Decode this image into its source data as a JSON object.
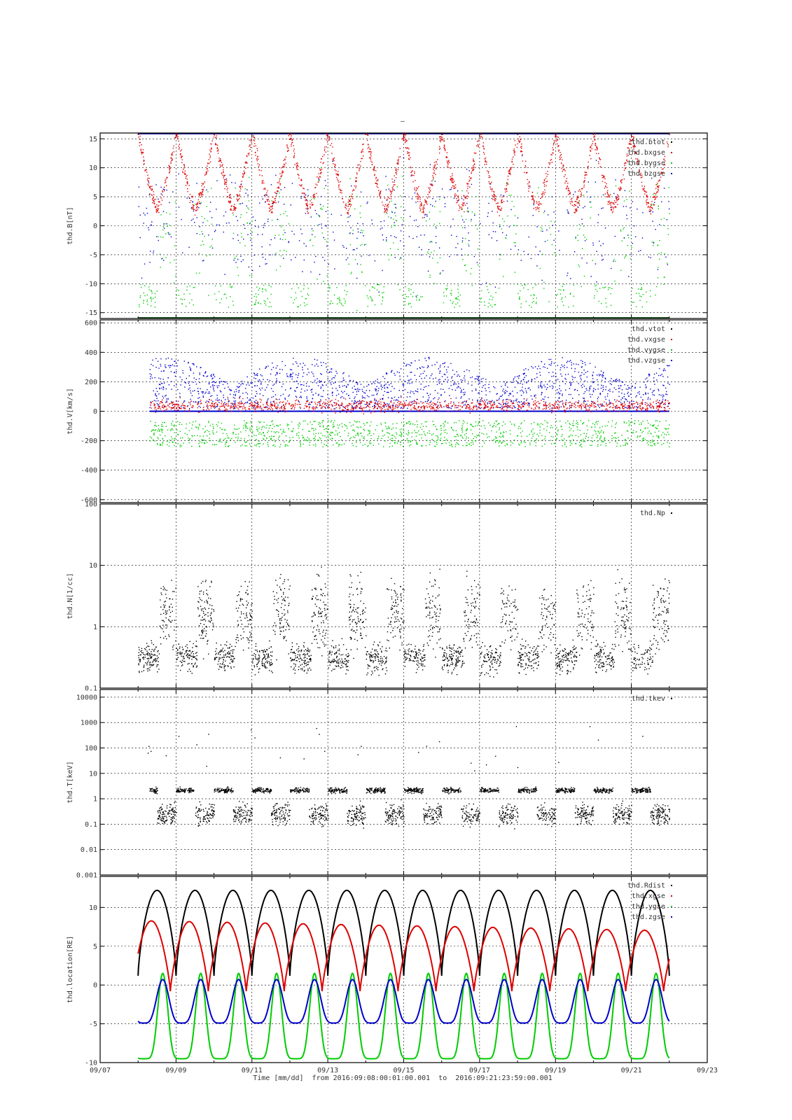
{
  "page": {
    "title_mark": "–"
  },
  "colors": {
    "black": "#000000",
    "red": "#dd0000",
    "green": "#00cc00",
    "blue": "#0000cc"
  },
  "x_axis": {
    "range_days": [
      "09/07",
      "09/23"
    ],
    "tick_labels": [
      "09/07",
      "09/09",
      "09/11",
      "09/13",
      "09/15",
      "09/17",
      "09/19",
      "09/21",
      "09/23"
    ],
    "caption": "Time [mm/dd]  from 2016:09:08:00:01:00.001  to  2016:09:21:23:59:00.001"
  },
  "chart_data": [
    {
      "type": "scatter",
      "ylabel": "thd.B[nT]",
      "ylim": [
        -16,
        16
      ],
      "yticks": [
        15,
        10,
        5,
        0,
        -5,
        -10,
        -15
      ],
      "ytick_labels": [
        "15",
        "10",
        "5",
        "0",
        "-5",
        "-10",
        "-15"
      ],
      "series": [
        {
          "name": "thd.btot",
          "color": "#000000"
        },
        {
          "name": "thd.bxgse",
          "color": "#dd0000"
        },
        {
          "name": "thd.bygse",
          "color": "#00cc00"
        },
        {
          "name": "thd.bzgse",
          "color": "#0000cc"
        }
      ]
    },
    {
      "type": "scatter",
      "ylabel": "thd.V[km/s]",
      "ylim": [
        -620,
        620
      ],
      "yticks": [
        600,
        400,
        200,
        0,
        -200,
        -400,
        -600
      ],
      "ytick_labels": [
        "600",
        "400",
        "200",
        "0",
        "-200",
        "-400",
        "-600"
      ],
      "series": [
        {
          "name": "thd.vtot",
          "color": "#000000"
        },
        {
          "name": "thd.vxgse",
          "color": "#dd0000"
        },
        {
          "name": "thd.vygse",
          "color": "#00cc00"
        },
        {
          "name": "thd.vzgse",
          "color": "#0000cc"
        }
      ]
    },
    {
      "type": "scatter",
      "scale": "log",
      "ylabel": "thd.N[1/cc]",
      "ylim": [
        0.1,
        100
      ],
      "yticks": [
        100,
        10,
        1,
        0.1
      ],
      "ytick_labels": [
        "100",
        "10",
        "1",
        "0.1"
      ],
      "series": [
        {
          "name": "thd.Np",
          "color": "#000000"
        }
      ]
    },
    {
      "type": "scatter",
      "scale": "log",
      "ylabel": "thd.T[keV]",
      "ylim": [
        0.001,
        20000
      ],
      "yticks": [
        10000,
        1000,
        100,
        10,
        1,
        0.1,
        0.01,
        0.001
      ],
      "ytick_labels": [
        "10000",
        "1000",
        "100",
        "10",
        "1",
        "0.1",
        "0.01",
        "0.001"
      ],
      "series": [
        {
          "name": "thd.tkev",
          "color": "#000000"
        }
      ]
    },
    {
      "type": "line",
      "ylabel": "thd.location[RE]",
      "ylim": [
        -10,
        14
      ],
      "yticks": [
        10,
        5,
        0,
        -5,
        -10
      ],
      "ytick_labels": [
        "10",
        "5",
        "0",
        "-5",
        "-10"
      ],
      "orbit_period_days": 1.0,
      "series": [
        {
          "name": "thd.Rdist",
          "color": "#000000",
          "min": 1.2,
          "max": 12.2
        },
        {
          "name": "thd.xgse",
          "color": "#dd0000",
          "min": -0.8,
          "max_start": 8.3,
          "max_end": 7.0
        },
        {
          "name": "thd.ygse",
          "color": "#00cc00",
          "min": -9.5,
          "max": 1.5
        },
        {
          "name": "thd.zgse",
          "color": "#0000cc",
          "min": -4.9,
          "max": 0.7
        }
      ]
    }
  ]
}
